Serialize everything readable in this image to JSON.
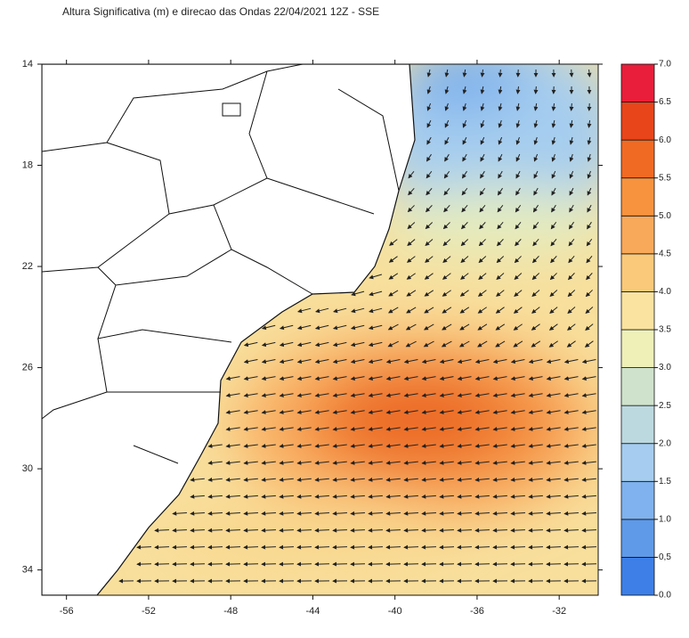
{
  "map": {
    "title": "Altura Significativa (m) e direcao das Ondas 22/04/2021 12Z - SSE",
    "lon_range": [
      -57.2,
      -30.1
    ],
    "lat_range": [
      14,
      35
    ],
    "lon_ticks": [
      -56,
      -52,
      -48,
      -44,
      -40,
      -36,
      -32
    ],
    "lat_ticks": [
      14,
      18,
      22,
      26,
      30,
      34
    ],
    "colorbar": {
      "range": [
        0,
        7
      ],
      "levels": [
        {
          "value": 0,
          "label": "0.0"
        },
        {
          "value": 0.5,
          "label": "0,5"
        },
        {
          "value": 1,
          "label": "1.0"
        },
        {
          "value": 1.5,
          "label": "1.5"
        },
        {
          "value": 2,
          "label": "2.0"
        },
        {
          "value": 2.5,
          "label": "2.5"
        },
        {
          "value": 3,
          "label": "3.0"
        },
        {
          "value": 3.5,
          "label": "3.5"
        },
        {
          "value": 4,
          "label": "4.0"
        },
        {
          "value": 4.5,
          "label": "4.5"
        },
        {
          "value": 5,
          "label": "5.0"
        },
        {
          "value": 5.5,
          "label": "5.5"
        },
        {
          "value": 6,
          "label": "6.0"
        },
        {
          "value": 6.5,
          "label": "6.5"
        },
        {
          "value": 7,
          "label": "7.0"
        }
      ],
      "colors": [
        "#3d7fe6",
        "#5e9ae8",
        "#7fb2ee",
        "#a6cdef",
        "#bcd9e0",
        "#cfe3cc",
        "#eef0b8",
        "#fae3a0",
        "#fbc97a",
        "#f9a95a",
        "#f7933f",
        "#f06a24",
        "#e8451a",
        "#e81e3a"
      ]
    }
  }
}
